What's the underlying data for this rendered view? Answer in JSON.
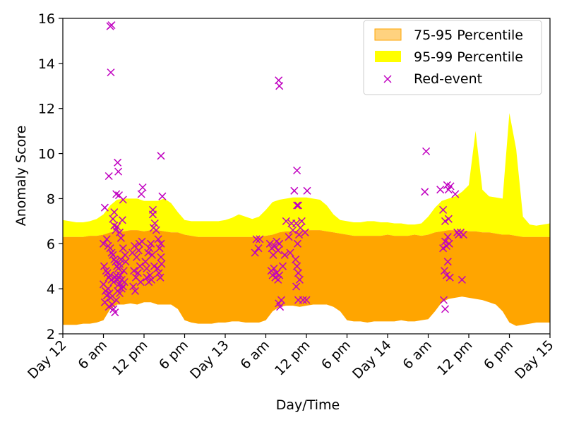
{
  "chart_data": {
    "type": "area",
    "title": "",
    "xlabel": "Day/Time",
    "ylabel": "Anomaly Score",
    "xlim": [
      0,
      72
    ],
    "ylim": [
      2,
      16
    ],
    "x_ticks": [
      {
        "v": 0,
        "label": "Day 12"
      },
      {
        "v": 6,
        "label": "6 am"
      },
      {
        "v": 12,
        "label": "12 pm"
      },
      {
        "v": 18,
        "label": "6 pm"
      },
      {
        "v": 24,
        "label": "Day 13"
      },
      {
        "v": 30,
        "label": "6 am"
      },
      {
        "v": 36,
        "label": "12 pm"
      },
      {
        "v": 42,
        "label": "6 pm"
      },
      {
        "v": 48,
        "label": "Day 14"
      },
      {
        "v": 54,
        "label": "6 am"
      },
      {
        "v": 60,
        "label": "12 pm"
      },
      {
        "v": 66,
        "label": "6 pm"
      },
      {
        "v": 72,
        "label": "Day 15"
      }
    ],
    "y_ticks": [
      2,
      4,
      6,
      8,
      10,
      12,
      14,
      16
    ],
    "legend_position": "top-right",
    "series": [
      {
        "name": "75-95 Percentile",
        "kind": "band",
        "color": "#ffa500",
        "x": [
          0,
          1,
          2,
          3,
          4,
          5,
          6,
          7,
          8,
          9,
          10,
          11,
          12,
          13,
          14,
          15,
          16,
          17,
          18,
          19,
          20,
          21,
          22,
          23,
          24,
          25,
          26,
          27,
          28,
          29,
          30,
          31,
          32,
          33,
          34,
          35,
          36,
          37,
          38,
          39,
          40,
          41,
          42,
          43,
          44,
          45,
          46,
          47,
          48,
          49,
          50,
          51,
          52,
          53,
          54,
          55,
          56,
          57,
          58,
          59,
          60,
          61,
          62,
          63,
          64,
          65,
          66,
          67,
          68,
          69,
          70,
          71,
          72
        ],
        "lower": [
          2.4,
          2.4,
          2.4,
          2.45,
          2.45,
          2.5,
          2.6,
          3.1,
          3.3,
          3.3,
          3.35,
          3.3,
          3.4,
          3.4,
          3.3,
          3.3,
          3.3,
          3.1,
          2.6,
          2.5,
          2.45,
          2.45,
          2.45,
          2.5,
          2.5,
          2.55,
          2.55,
          2.5,
          2.5,
          2.5,
          2.6,
          3.0,
          3.2,
          3.25,
          3.25,
          3.2,
          3.25,
          3.3,
          3.3,
          3.3,
          3.2,
          3.0,
          2.6,
          2.55,
          2.55,
          2.5,
          2.55,
          2.55,
          2.55,
          2.55,
          2.6,
          2.55,
          2.55,
          2.6,
          2.65,
          3.0,
          3.4,
          3.55,
          3.6,
          3.65,
          3.6,
          3.55,
          3.5,
          3.4,
          3.3,
          3.0,
          2.5,
          2.35,
          2.4,
          2.45,
          2.5,
          2.5,
          2.5
        ],
        "upper": [
          6.3,
          6.3,
          6.3,
          6.3,
          6.35,
          6.35,
          6.4,
          6.5,
          6.55,
          6.55,
          6.6,
          6.6,
          6.55,
          6.6,
          6.6,
          6.55,
          6.5,
          6.5,
          6.4,
          6.35,
          6.3,
          6.3,
          6.3,
          6.3,
          6.3,
          6.3,
          6.3,
          6.3,
          6.3,
          6.3,
          6.35,
          6.4,
          6.5,
          6.55,
          6.55,
          6.6,
          6.6,
          6.6,
          6.6,
          6.55,
          6.5,
          6.45,
          6.4,
          6.35,
          6.35,
          6.35,
          6.35,
          6.35,
          6.4,
          6.35,
          6.35,
          6.35,
          6.4,
          6.35,
          6.4,
          6.5,
          6.55,
          6.6,
          6.6,
          6.6,
          6.55,
          6.55,
          6.5,
          6.5,
          6.45,
          6.4,
          6.4,
          6.35,
          6.3,
          6.3,
          6.3,
          6.3,
          6.3
        ]
      },
      {
        "name": "95-99 Percentile",
        "kind": "band",
        "color": "#ffff00",
        "x": [
          0,
          1,
          2,
          3,
          4,
          5,
          6,
          7,
          8,
          9,
          10,
          11,
          12,
          13,
          14,
          15,
          16,
          17,
          18,
          19,
          20,
          21,
          22,
          23,
          24,
          25,
          26,
          27,
          28,
          29,
          30,
          31,
          32,
          33,
          34,
          35,
          36,
          37,
          38,
          39,
          40,
          41,
          42,
          43,
          44,
          45,
          46,
          47,
          48,
          49,
          50,
          51,
          52,
          53,
          54,
          55,
          56,
          57,
          58,
          59,
          60,
          61,
          62,
          63,
          64,
          65,
          66,
          67,
          68,
          69,
          70,
          71,
          72
        ],
        "upper": [
          7.05,
          7.0,
          6.95,
          6.95,
          7.0,
          7.1,
          7.3,
          7.7,
          7.95,
          8.0,
          8.0,
          8.0,
          7.9,
          7.9,
          7.9,
          8.0,
          7.8,
          7.4,
          7.05,
          7.0,
          7.0,
          7.0,
          7.0,
          7.0,
          7.05,
          7.15,
          7.3,
          7.2,
          7.1,
          7.2,
          7.5,
          7.85,
          7.95,
          8.0,
          8.05,
          8.05,
          8.05,
          8.0,
          7.95,
          7.7,
          7.3,
          7.05,
          7.0,
          6.95,
          6.95,
          7.0,
          7.0,
          6.95,
          6.95,
          6.9,
          6.9,
          6.85,
          6.85,
          6.9,
          7.2,
          7.6,
          7.9,
          8.0,
          8.1,
          8.3,
          8.6,
          11.0,
          8.4,
          8.1,
          8.05,
          8.0,
          11.8,
          10.2,
          7.2,
          6.85,
          6.8,
          6.85,
          6.9
        ]
      },
      {
        "name": "Red-event",
        "kind": "scatter",
        "marker": "x",
        "color": "#c000c0",
        "points": [
          [
            7.0,
            15.65
          ],
          [
            7.2,
            15.7
          ],
          [
            7.1,
            13.6
          ],
          [
            6.8,
            9.0
          ],
          [
            8.1,
            9.6
          ],
          [
            8.2,
            9.2
          ],
          [
            7.9,
            8.2
          ],
          [
            8.3,
            8.15
          ],
          [
            8.9,
            7.95
          ],
          [
            6.2,
            7.6
          ],
          [
            7.4,
            7.1
          ],
          [
            7.6,
            7.4
          ],
          [
            7.6,
            6.8
          ],
          [
            7.8,
            6.6
          ],
          [
            8.0,
            6.75
          ],
          [
            8.4,
            6.5
          ],
          [
            8.6,
            6.25
          ],
          [
            8.8,
            7.05
          ],
          [
            6.0,
            6.0
          ],
          [
            6.5,
            6.2
          ],
          [
            6.7,
            5.9
          ],
          [
            7.0,
            5.8
          ],
          [
            7.2,
            5.6
          ],
          [
            7.4,
            5.5
          ],
          [
            7.6,
            5.3
          ],
          [
            7.8,
            5.2
          ],
          [
            8.0,
            5.0
          ],
          [
            8.2,
            4.9
          ],
          [
            8.4,
            5.1
          ],
          [
            8.6,
            5.3
          ],
          [
            8.9,
            5.8
          ],
          [
            9.2,
            5.5
          ],
          [
            6.1,
            5.0
          ],
          [
            6.4,
            4.8
          ],
          [
            6.6,
            4.7
          ],
          [
            6.8,
            4.5
          ],
          [
            7.0,
            4.6
          ],
          [
            7.2,
            4.4
          ],
          [
            7.5,
            4.3
          ],
          [
            7.7,
            4.5
          ],
          [
            7.9,
            4.6
          ],
          [
            8.1,
            4.4
          ],
          [
            8.3,
            4.2
          ],
          [
            8.5,
            4.6
          ],
          [
            8.7,
            4.4
          ],
          [
            8.9,
            4.1
          ],
          [
            9.1,
            4.3
          ],
          [
            6.0,
            4.2
          ],
          [
            6.3,
            3.9
          ],
          [
            6.5,
            3.7
          ],
          [
            6.7,
            4.0
          ],
          [
            6.9,
            3.8
          ],
          [
            7.1,
            3.6
          ],
          [
            7.3,
            3.3
          ],
          [
            7.5,
            3.1
          ],
          [
            7.7,
            2.95
          ],
          [
            7.9,
            3.5
          ],
          [
            8.1,
            3.9
          ],
          [
            8.4,
            3.8
          ],
          [
            8.7,
            4.0
          ],
          [
            6.2,
            3.4
          ],
          [
            6.8,
            3.2
          ],
          [
            9.0,
            4.8
          ],
          [
            9.3,
            5.2
          ],
          [
            10.3,
            5.6
          ],
          [
            10.6,
            5.9
          ],
          [
            10.9,
            5.4
          ],
          [
            11.2,
            5.7
          ],
          [
            11.4,
            5.0
          ],
          [
            10.5,
            4.8
          ],
          [
            10.8,
            4.5
          ],
          [
            11.1,
            4.7
          ],
          [
            11.5,
            4.3
          ],
          [
            10.4,
            4.1
          ],
          [
            10.7,
            3.9
          ],
          [
            11.3,
            6.0
          ],
          [
            11.7,
            6.1
          ],
          [
            11.8,
            8.5
          ],
          [
            11.6,
            8.2
          ],
          [
            12.2,
            5.2
          ],
          [
            12.4,
            4.9
          ],
          [
            12.6,
            5.6
          ],
          [
            12.8,
            5.8
          ],
          [
            13.0,
            6.0
          ],
          [
            12.4,
            4.5
          ],
          [
            12.7,
            4.3
          ],
          [
            12.9,
            4.6
          ],
          [
            13.1,
            4.4
          ],
          [
            13.3,
            7.5
          ],
          [
            13.3,
            7.3
          ],
          [
            13.4,
            6.7
          ],
          [
            13.2,
            5.5
          ],
          [
            13.5,
            5.0
          ],
          [
            13.6,
            6.9
          ],
          [
            13.8,
            6.6
          ],
          [
            14.1,
            6.2
          ],
          [
            14.3,
            5.8
          ],
          [
            14.5,
            5.4
          ],
          [
            14.6,
            5.1
          ],
          [
            14.0,
            4.9
          ],
          [
            14.2,
            4.7
          ],
          [
            14.4,
            4.5
          ],
          [
            14.5,
            6.0
          ],
          [
            14.5,
            9.9
          ],
          [
            14.7,
            8.1
          ],
          [
            28.6,
            6.2
          ],
          [
            28.4,
            5.6
          ],
          [
            28.9,
            5.8
          ],
          [
            29.1,
            6.2
          ],
          [
            30.6,
            6.0
          ],
          [
            30.9,
            5.8
          ],
          [
            31.1,
            5.5
          ],
          [
            31.3,
            5.9
          ],
          [
            31.6,
            6.1
          ],
          [
            31.8,
            5.7
          ],
          [
            32.0,
            6.0
          ],
          [
            30.8,
            4.8
          ],
          [
            31.0,
            4.6
          ],
          [
            31.2,
            4.9
          ],
          [
            31.4,
            4.5
          ],
          [
            31.6,
            4.7
          ],
          [
            31.8,
            4.4
          ],
          [
            32.0,
            4.6
          ],
          [
            31.9,
            13.25
          ],
          [
            32.0,
            13.0
          ],
          [
            31.9,
            3.35
          ],
          [
            32.1,
            3.2
          ],
          [
            32.3,
            3.5
          ],
          [
            32.5,
            5.0
          ],
          [
            32.8,
            5.5
          ],
          [
            33.0,
            7.0
          ],
          [
            33.4,
            6.3
          ],
          [
            33.6,
            5.6
          ],
          [
            33.8,
            6.9
          ],
          [
            34.0,
            6.6
          ],
          [
            34.2,
            8.35
          ],
          [
            34.6,
            7.7
          ],
          [
            34.8,
            7.7
          ],
          [
            34.6,
            9.25
          ],
          [
            34.5,
            6.9
          ],
          [
            34.7,
            6.0
          ],
          [
            34.9,
            6.4
          ],
          [
            35.1,
            6.7
          ],
          [
            35.3,
            7.0
          ],
          [
            34.4,
            5.3
          ],
          [
            34.6,
            5.0
          ],
          [
            34.8,
            4.7
          ],
          [
            35.0,
            4.4
          ],
          [
            34.5,
            4.1
          ],
          [
            34.8,
            3.5
          ],
          [
            35.5,
            3.5
          ],
          [
            36.0,
            3.5
          ],
          [
            36.1,
            8.35
          ],
          [
            35.8,
            6.5
          ],
          [
            53.5,
            8.3
          ],
          [
            53.7,
            10.1
          ],
          [
            55.8,
            8.4
          ],
          [
            56.2,
            7.5
          ],
          [
            56.8,
            8.6
          ],
          [
            57.0,
            8.4
          ],
          [
            57.3,
            8.55
          ],
          [
            56.5,
            7.0
          ],
          [
            57.0,
            7.1
          ],
          [
            56.2,
            5.8
          ],
          [
            56.5,
            6.1
          ],
          [
            56.7,
            5.9
          ],
          [
            56.9,
            6.3
          ],
          [
            57.1,
            6.0
          ],
          [
            56.4,
            4.8
          ],
          [
            56.7,
            4.6
          ],
          [
            56.9,
            5.2
          ],
          [
            57.2,
            4.5
          ],
          [
            56.3,
            3.5
          ],
          [
            56.5,
            3.1
          ],
          [
            58.0,
            8.2
          ],
          [
            58.3,
            6.5
          ],
          [
            58.5,
            6.4
          ],
          [
            58.8,
            6.5
          ],
          [
            59.2,
            6.4
          ],
          [
            59.0,
            4.4
          ]
        ]
      }
    ]
  }
}
